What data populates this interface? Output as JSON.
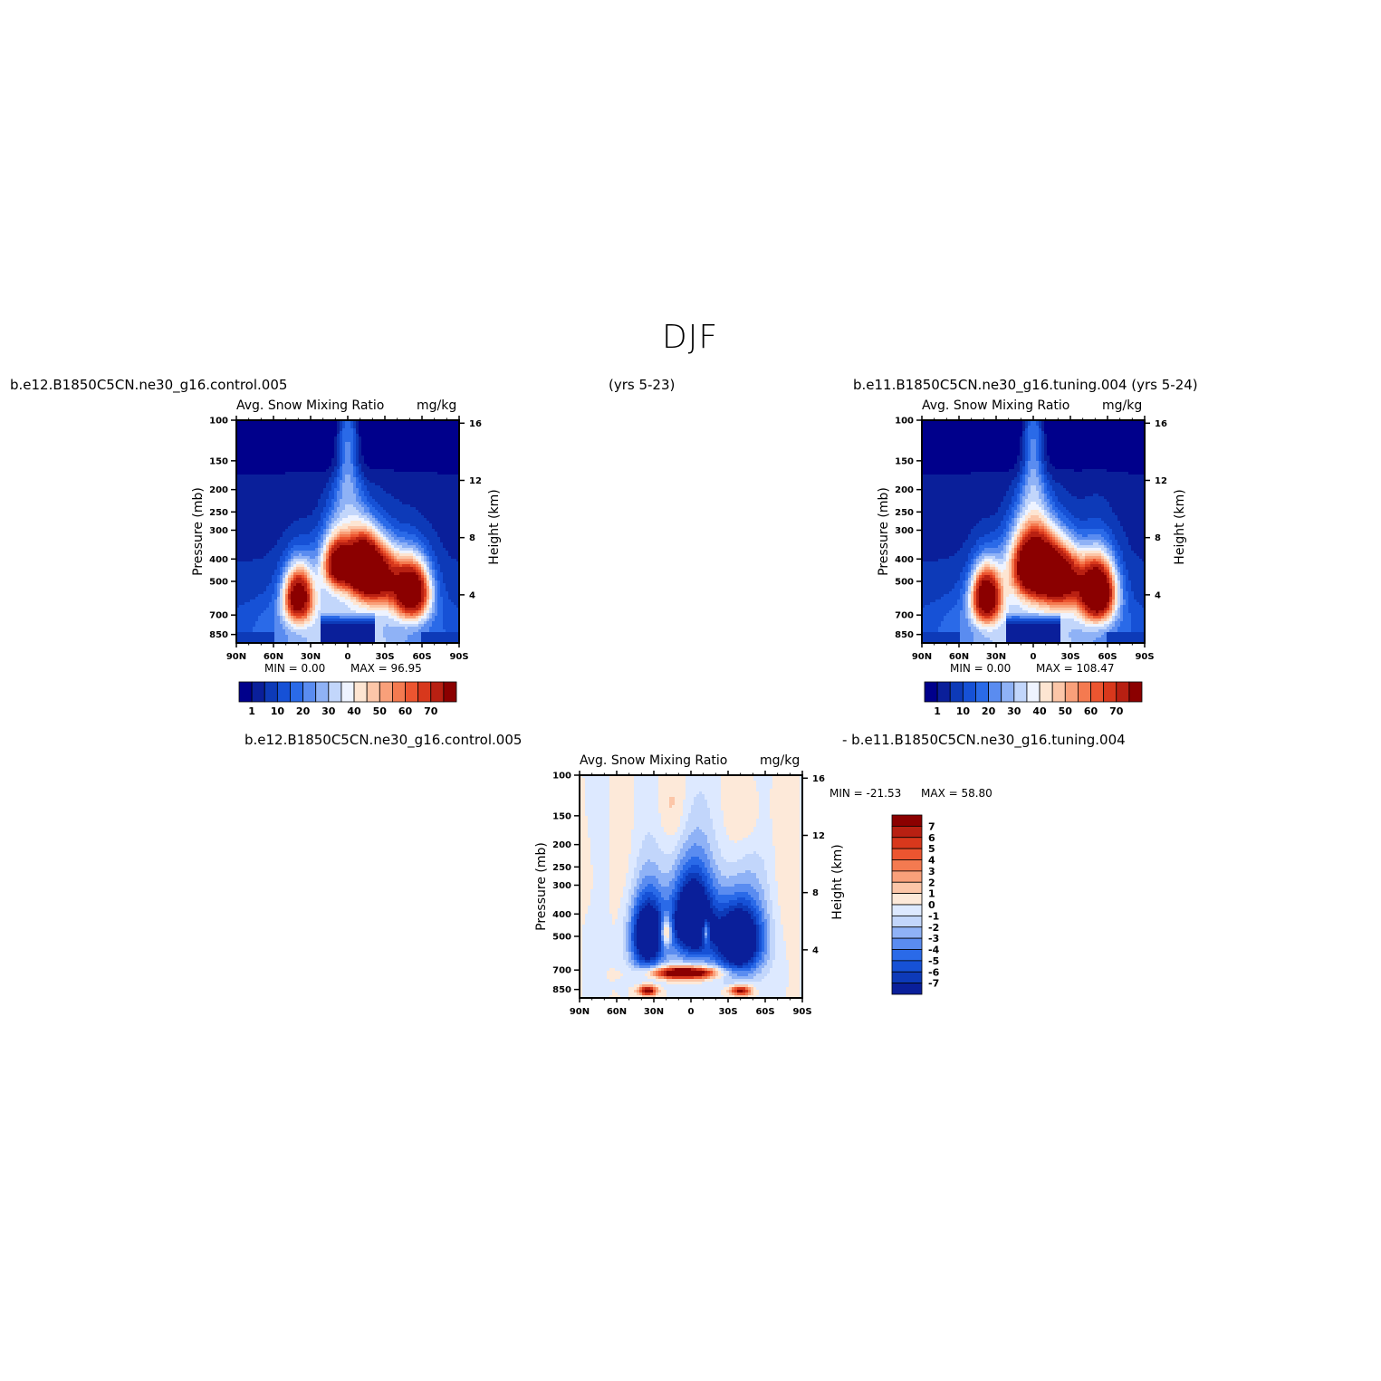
{
  "figure": {
    "title": "DJF",
    "case1_label": "b.e12.B1850C5CN.ne30_g16.control.005",
    "case1_years": "(yrs 5-23)",
    "case2_label": "b.e11.B1850C5CN.ne30_g16.tuning.004 (yrs 5-24)",
    "diff_left_label": "b.e12.B1850C5CN.ne30_g16.control.005",
    "diff_right_label": "- b.e11.B1850C5CN.ne30_g16.tuning.004"
  },
  "colors": {
    "abs_scale": [
      "#00008b",
      "#0a1f9a",
      "#0d3ab8",
      "#1651d6",
      "#2a6ae8",
      "#5a8cf0",
      "#8fb2f6",
      "#c2d6fb",
      "#eef3ff",
      "#fde5d2",
      "#fcc6a8",
      "#f9a07a",
      "#f47a50",
      "#ec5530",
      "#d8381c",
      "#b82012",
      "#8b0000"
    ],
    "diff_scale": [
      "#00008b",
      "#0a1f9a",
      "#0d3ab8",
      "#1651d6",
      "#2a6ae8",
      "#5a8cf0",
      "#8fb2f6",
      "#c2d6fb",
      "#dde9ff",
      "#fde9d9",
      "#fcc6a8",
      "#f9a07a",
      "#f47a50",
      "#ec5530",
      "#d8381c",
      "#b82012",
      "#8b0000"
    ]
  },
  "chart_data": [
    {
      "id": "control",
      "type": "heatmap",
      "title": "Avg. Snow Mixing Ratio",
      "units": "mg/kg",
      "xlabel": "",
      "ylabel": "Pressure (mb)",
      "y2label": "Height (km)",
      "xticks": [
        "90N",
        "60N",
        "30N",
        "0",
        "30S",
        "60S",
        "90S"
      ],
      "yticks": [
        100,
        150,
        200,
        250,
        300,
        400,
        500,
        700,
        850
      ],
      "y2ticks": [
        16,
        12,
        8,
        4
      ],
      "min_text": "MIN =    0.00",
      "max_text": "MAX =   96.95",
      "min": 0.0,
      "max": 96.95,
      "colorbar_labels": [
        "1",
        "10",
        "20",
        "30",
        "40",
        "50",
        "60",
        "70"
      ],
      "features": [
        {
          "lat": -52,
          "p": 550,
          "value": 95,
          "lat_sigma": 10,
          "p_sigma": 110
        },
        {
          "lat": 40,
          "p": 580,
          "value": 80,
          "lat_sigma": 8,
          "p_sigma": 110
        },
        {
          "lat": -12,
          "p": 430,
          "value": 85,
          "lat_sigma": 8,
          "p_sigma": 80
        },
        {
          "lat": 7,
          "p": 420,
          "value": 78,
          "lat_sigma": 8,
          "p_sigma": 70
        },
        {
          "lat": -25,
          "p": 470,
          "value": 70,
          "lat_sigma": 12,
          "p_sigma": 100
        }
      ]
    },
    {
      "id": "tuning",
      "type": "heatmap",
      "title": "Avg. Snow Mixing Ratio",
      "units": "mg/kg",
      "xlabel": "",
      "ylabel": "Pressure (mb)",
      "y2label": "Height (km)",
      "xticks": [
        "90N",
        "60N",
        "30N",
        "0",
        "30S",
        "60S",
        "90S"
      ],
      "yticks": [
        100,
        150,
        200,
        250,
        300,
        400,
        500,
        700,
        850
      ],
      "y2ticks": [
        16,
        12,
        8,
        4
      ],
      "min_text": "MIN =    0.00",
      "max_text": "MAX =  108.47",
      "min": 0.0,
      "max": 108.47,
      "colorbar_labels": [
        "1",
        "10",
        "20",
        "30",
        "40",
        "50",
        "60",
        "70"
      ],
      "features": [
        {
          "lat": -52,
          "p": 550,
          "value": 105,
          "lat_sigma": 10,
          "p_sigma": 120
        },
        {
          "lat": 38,
          "p": 580,
          "value": 88,
          "lat_sigma": 8,
          "p_sigma": 110
        },
        {
          "lat": 0,
          "p": 430,
          "value": 100,
          "lat_sigma": 11,
          "p_sigma": 90
        },
        {
          "lat": -22,
          "p": 480,
          "value": 80,
          "lat_sigma": 12,
          "p_sigma": 100
        }
      ]
    },
    {
      "id": "difference",
      "type": "heatmap",
      "title": "Avg. Snow Mixing Ratio",
      "units": "mg/kg",
      "xlabel": "",
      "ylabel": "Pressure (mb)",
      "y2label": "Height (km)",
      "xticks": [
        "90N",
        "60N",
        "30N",
        "0",
        "30S",
        "60S",
        "90S"
      ],
      "yticks": [
        100,
        150,
        200,
        250,
        300,
        400,
        500,
        700,
        850
      ],
      "y2ticks": [
        16,
        12,
        8,
        4
      ],
      "min_text": "MIN = -21.53",
      "max_text": "MAX =   58.80",
      "min": -21.53,
      "max": 58.8,
      "colorbar_labels": [
        "7",
        "6",
        "5",
        "4",
        "3",
        "2",
        "1",
        "0",
        "-1",
        "-2",
        "-3",
        "-4",
        "-5",
        "-6",
        "-7"
      ],
      "features": [
        {
          "lat": 0,
          "p": 420,
          "value": -12,
          "lat_sigma": 12,
          "p_sigma": 130
        },
        {
          "lat": 35,
          "p": 500,
          "value": -11,
          "lat_sigma": 10,
          "p_sigma": 130
        },
        {
          "lat": -38,
          "p": 520,
          "value": -12,
          "lat_sigma": 14,
          "p_sigma": 140
        },
        {
          "lat": 5,
          "p": 720,
          "value": 12,
          "lat_sigma": 18,
          "p_sigma": 30
        },
        {
          "lat": 20,
          "p": 480,
          "value": 7,
          "lat_sigma": 3,
          "p_sigma": 50
        },
        {
          "lat": -12,
          "p": 480,
          "value": 6,
          "lat_sigma": 2,
          "p_sigma": 40
        },
        {
          "lat": 35,
          "p": 860,
          "value": 9,
          "lat_sigma": 5,
          "p_sigma": 30
        },
        {
          "lat": -40,
          "p": 860,
          "value": 8,
          "lat_sigma": 6,
          "p_sigma": 30
        },
        {
          "lat": 15,
          "p": 140,
          "value": 1.2,
          "lat_sigma": 8,
          "p_sigma": 40
        },
        {
          "lat": -45,
          "p": 150,
          "value": 1.0,
          "lat_sigma": 10,
          "p_sigma": 40
        },
        {
          "lat": 85,
          "p": 280,
          "value": 0.8,
          "lat_sigma": 6,
          "p_sigma": 80
        }
      ]
    }
  ]
}
